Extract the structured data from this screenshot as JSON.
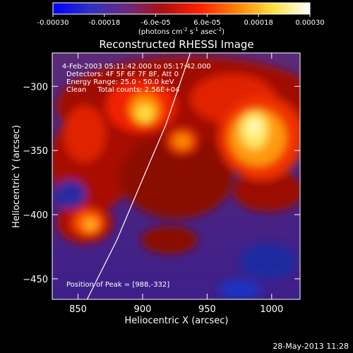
{
  "colorbar": {
    "ticks": [
      "-0.00030",
      "-0.00018",
      "-6.0e-05",
      "6.0e-05",
      "0.00018",
      "0.00030"
    ],
    "tick_values": [
      -0.0003,
      -0.00018,
      -6e-05,
      6e-05,
      0.00018,
      0.0003
    ],
    "units_main": "(photons cm",
    "units_exp1": "-2",
    "units_mid": " s",
    "units_exp2": "-1",
    "units_tail": " asec",
    "units_exp3": "-2",
    "units_close": ")",
    "stops": [
      "#0000ff",
      "#3030c0",
      "#6a2a80",
      "#b01010",
      "#ff2000",
      "#ff8000",
      "#ffe040",
      "#ffffff"
    ]
  },
  "chart_data": {
    "type": "heatmap",
    "title": "Reconstructed RHESSI Image",
    "xlabel": "Heliocentric X (arcsec)",
    "ylabel": "Heliocentric Y (arcsec)",
    "xlim": [
      830,
      1022
    ],
    "ylim": [
      -466,
      -274
    ],
    "x_ticks": [
      850,
      900,
      950,
      1000
    ],
    "y_ticks": [
      -300,
      -350,
      -400,
      -450
    ],
    "x_tick_labels": [
      "850",
      "900",
      "950",
      "1000"
    ],
    "y_tick_labels": [
      "−300",
      "−350",
      "−400",
      "−450"
    ],
    "annotations": {
      "time": "4-Feb-2003 05:11:42.000 to 05:17:42.000",
      "detectors": "Detectors: 4F 5F 6F 7F 8F, Att 0",
      "energy": "Energy Range: 25.0 - 50.0 keV",
      "clean": "Clean     Total counts: 2.56E+04",
      "peak": "Position of Peak = [988,-332]"
    },
    "peak": [
      988,
      -332
    ],
    "limb_points": [
      [
        857,
        -466
      ],
      [
        880,
        -420
      ],
      [
        901,
        -370
      ],
      [
        918,
        -330
      ],
      [
        937,
        -274
      ]
    ]
  },
  "footer": {
    "date": "28-May-2013 11:28"
  }
}
